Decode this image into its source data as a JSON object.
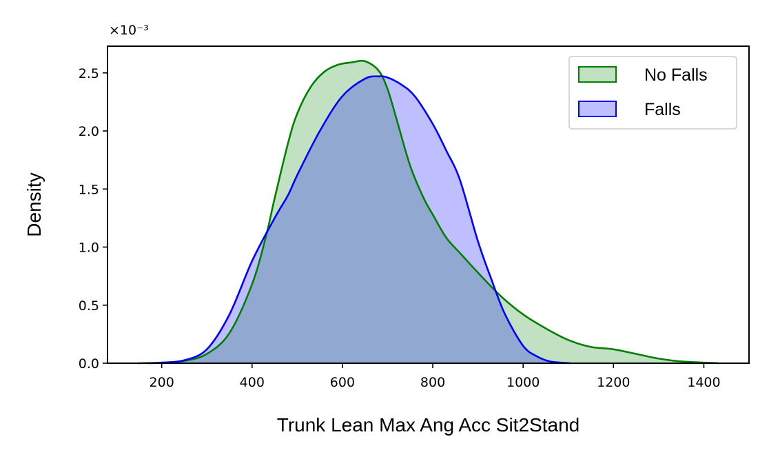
{
  "chart_data": {
    "type": "area",
    "title": "",
    "xlabel": "Trunk Lean Max Ang Acc Sit2Stand",
    "ylabel": "Density",
    "y_multiplier_label": "×10⁻³",
    "xlim": [
      80,
      1500
    ],
    "ylim": [
      0,
      2.73
    ],
    "x_ticks": [
      200,
      400,
      600,
      800,
      1000,
      1200,
      1400
    ],
    "x_tick_labels": [
      "200",
      "400",
      "600",
      "800",
      "1000",
      "1200",
      "1400"
    ],
    "y_ticks": [
      0.0,
      0.5,
      1.0,
      1.5,
      2.0,
      2.5
    ],
    "y_tick_labels": [
      "0.0",
      "0.5",
      "1.0",
      "1.5",
      "2.0",
      "2.5"
    ],
    "grid": false,
    "legend_position": "top-right",
    "series": [
      {
        "name": "No Falls",
        "color": "#008000",
        "fill": "rgba(0,128,0,0.24)",
        "x": [
          147,
          200,
          250,
          300,
          350,
          400,
          430,
          450,
          480,
          500,
          530,
          560,
          590,
          620,
          650,
          680,
          700,
          720,
          750,
          780,
          800,
          830,
          860,
          900,
          950,
          1000,
          1050,
          1100,
          1150,
          1200,
          1250,
          1300,
          1350,
          1433
        ],
        "y": [
          0.0,
          0.005,
          0.02,
          0.08,
          0.26,
          0.68,
          1.08,
          1.42,
          1.9,
          2.15,
          2.38,
          2.51,
          2.57,
          2.59,
          2.6,
          2.52,
          2.36,
          2.1,
          1.7,
          1.42,
          1.28,
          1.08,
          0.95,
          0.78,
          0.58,
          0.42,
          0.3,
          0.2,
          0.14,
          0.12,
          0.08,
          0.04,
          0.015,
          0.0
        ]
      },
      {
        "name": "Falls",
        "color": "#0000ff",
        "fill": "rgba(0,0,255,0.25)",
        "x": [
          170,
          200,
          250,
          300,
          350,
          400,
          450,
          480,
          500,
          550,
          600,
          650,
          680,
          700,
          730,
          760,
          800,
          830,
          860,
          900,
          930,
          960,
          1000,
          1030,
          1060,
          1105
        ],
        "y": [
          0.0,
          0.005,
          0.025,
          0.12,
          0.42,
          0.88,
          1.25,
          1.45,
          1.62,
          2.0,
          2.3,
          2.45,
          2.47,
          2.46,
          2.4,
          2.3,
          2.06,
          1.83,
          1.58,
          1.05,
          0.72,
          0.42,
          0.15,
          0.06,
          0.015,
          0.0
        ]
      }
    ]
  }
}
